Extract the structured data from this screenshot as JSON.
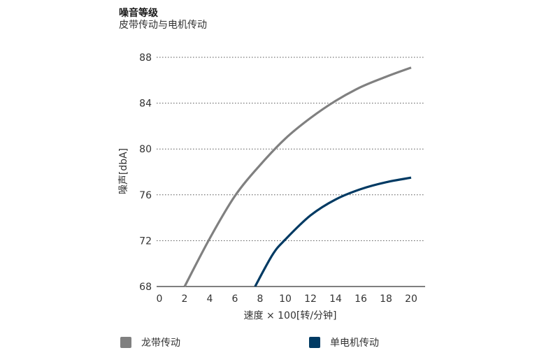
{
  "chart_data": {
    "type": "line",
    "title": "噪音等级",
    "subtitle": "皮带传动与电机传动",
    "xlabel": "速度 × 100[转/分钟]",
    "ylabel": "噪声[dbA]",
    "xlim": [
      0,
      20
    ],
    "ylim": [
      68,
      88
    ],
    "x_ticks": [
      "0",
      "2",
      "4",
      "6",
      "8",
      "10",
      "12",
      "14",
      "16",
      "18",
      "20"
    ],
    "y_ticks": [
      "68",
      "72",
      "76",
      "80",
      "84",
      "88"
    ],
    "grid": "horizontal dotted",
    "legend_position": "bottom",
    "series": [
      {
        "name": "龙带传动",
        "color": "#808080",
        "x": [
          2,
          4,
          6,
          8,
          10,
          12,
          14,
          16,
          18,
          20
        ],
        "y": [
          68,
          72.2,
          75.9,
          78.6,
          80.9,
          82.7,
          84.2,
          85.4,
          86.3,
          87.1
        ]
      },
      {
        "name": "单电机传动",
        "color": "#003a63",
        "x": [
          7.6,
          9,
          10,
          12,
          14,
          16,
          18,
          20
        ],
        "y": [
          68,
          70.8,
          72.1,
          74.2,
          75.6,
          76.5,
          77.1,
          77.5
        ]
      }
    ]
  }
}
